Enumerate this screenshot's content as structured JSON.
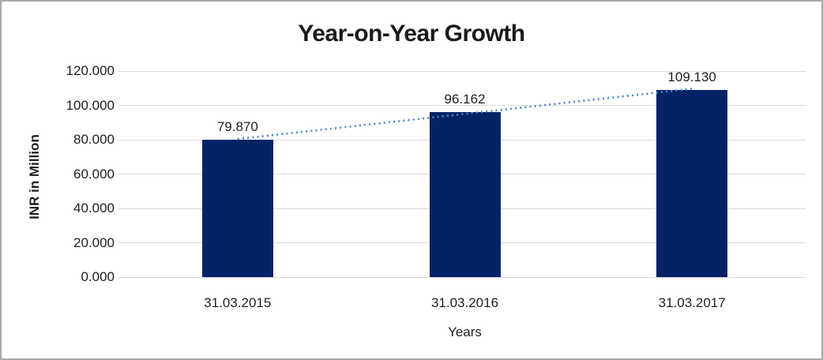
{
  "chart_data": {
    "type": "bar",
    "title": "Year-on-Year Growth",
    "xlabel": "Years",
    "ylabel": "INR in Million",
    "categories": [
      "31.03.2015",
      "31.03.2016",
      "31.03.2017"
    ],
    "values": [
      79.87,
      96.162,
      109.13
    ],
    "value_labels": [
      "79.870",
      "96.162",
      "109.130"
    ],
    "ylim": [
      0,
      120
    ],
    "ytick_values": [
      0,
      20,
      40,
      60,
      80,
      100,
      120
    ],
    "ytick_labels": [
      "0.000",
      "20.000",
      "40.000",
      "60.000",
      "80.000",
      "100.000",
      "120.000"
    ],
    "grid": true,
    "legend": "none",
    "trendline": {
      "type": "linear",
      "style": "dotted",
      "color": "#4a86c8"
    },
    "colors": {
      "bar": "#042366",
      "gridline": "#d9d9d9",
      "text": "#1f1f1f",
      "title": "#1a1a1a",
      "frame_border": "#a9a9a9",
      "background": "#ffffff"
    }
  }
}
